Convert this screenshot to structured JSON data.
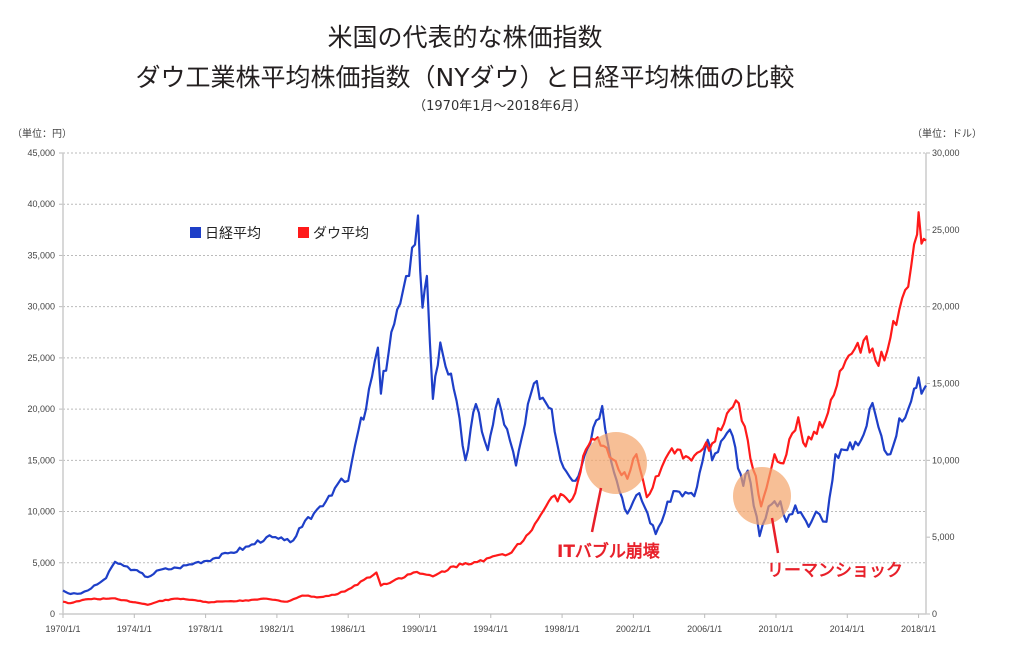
{
  "title_line1": "米国の代表的な株価指数",
  "title_line2": "ダウ工業株平均株価指数（NYダウ）と日経平均株価の比較",
  "subtitle": "（1970年1月～2018年6月）",
  "chart_data": {
    "type": "line",
    "title": "米国の代表的な株価指数 ダウ工業株平均株価指数（NYダウ）と日経平均株価の比較",
    "subtitle": "（1970年1月～2018年6月）",
    "left_axis": {
      "unit_label": "（単位：円）",
      "range": [
        0,
        45000
      ],
      "ticks": [
        "0",
        "5,000",
        "10,000",
        "15,000",
        "20,000",
        "25,000",
        "30,000",
        "35,000",
        "40,000",
        "45,000"
      ]
    },
    "right_axis": {
      "unit_label": "（単位：ドル）",
      "range": [
        0,
        30000
      ],
      "ticks": [
        "0",
        "5,000",
        "10,000",
        "15,000",
        "20,000",
        "25,000",
        "30,000"
      ]
    },
    "x_axis": {
      "range": [
        "1970-01",
        "2018-06"
      ],
      "ticks": [
        "1970/1/1",
        "1974/1/1",
        "1978/1/1",
        "1982/1/1",
        "1986/1/1",
        "1990/1/1",
        "1994/1/1",
        "1998/1/1",
        "2002/1/1",
        "2006/1/1",
        "2010/1/1",
        "2014/1/1",
        "2018/1/1"
      ]
    },
    "grid": true,
    "legend_position": "top-left",
    "series": [
      {
        "name": "日経平均",
        "axis": "left",
        "color": "#1e3fc8",
        "points": [
          [
            "1970-01",
            2300
          ],
          [
            "1970-06",
            1950
          ],
          [
            "1971-01",
            2000
          ],
          [
            "1971-08",
            2500
          ],
          [
            "1972-06",
            3500
          ],
          [
            "1972-12",
            5100
          ],
          [
            "1973-06",
            4700
          ],
          [
            "1974-01",
            4300
          ],
          [
            "1974-10",
            3600
          ],
          [
            "1975-06",
            4300
          ],
          [
            "1976-06",
            4500
          ],
          [
            "1977-06",
            5000
          ],
          [
            "1978-06",
            5400
          ],
          [
            "1979-06",
            6000
          ],
          [
            "1980-06",
            6600
          ],
          [
            "1981-06",
            7500
          ],
          [
            "1982-06",
            7200
          ],
          [
            "1982-10",
            7000
          ],
          [
            "1983-06",
            8500
          ],
          [
            "1984-06",
            10500
          ],
          [
            "1985-06",
            12700
          ],
          [
            "1986-01",
            13000
          ],
          [
            "1986-08",
            18000
          ],
          [
            "1987-01",
            20000
          ],
          [
            "1987-09",
            26000
          ],
          [
            "1987-11",
            21500
          ],
          [
            "1988-06",
            27500
          ],
          [
            "1989-06",
            33000
          ],
          [
            "1989-12",
            38900
          ],
          [
            "1990-03",
            29900
          ],
          [
            "1990-06",
            33000
          ],
          [
            "1990-10",
            21000
          ],
          [
            "1991-03",
            26500
          ],
          [
            "1991-12",
            22000
          ],
          [
            "1992-08",
            15000
          ],
          [
            "1993-03",
            20500
          ],
          [
            "1993-11",
            16000
          ],
          [
            "1994-06",
            21000
          ],
          [
            "1995-06",
            14500
          ],
          [
            "1996-06",
            22500
          ],
          [
            "1997-06",
            20000
          ],
          [
            "1997-12",
            15000
          ],
          [
            "1998-10",
            13000
          ],
          [
            "1999-12",
            18900
          ],
          [
            "2000-04",
            20300
          ],
          [
            "2000-12",
            13800
          ],
          [
            "2001-09",
            9800
          ],
          [
            "2002-05",
            11800
          ],
          [
            "2003-04",
            7800
          ],
          [
            "2004-04",
            12000
          ],
          [
            "2005-06",
            11500
          ],
          [
            "2006-03",
            17000
          ],
          [
            "2006-06",
            15000
          ],
          [
            "2007-06",
            18000
          ],
          [
            "2008-03",
            12500
          ],
          [
            "2008-06",
            14000
          ],
          [
            "2009-02",
            7600
          ],
          [
            "2009-08",
            10500
          ],
          [
            "2010-04",
            11000
          ],
          [
            "2010-08",
            9000
          ],
          [
            "2011-02",
            10600
          ],
          [
            "2011-11",
            8500
          ],
          [
            "2012-04",
            10000
          ],
          [
            "2012-11",
            9000
          ],
          [
            "2013-05",
            15600
          ],
          [
            "2014-01",
            16000
          ],
          [
            "2014-12",
            17500
          ],
          [
            "2015-06",
            20600
          ],
          [
            "2016-02",
            16000
          ],
          [
            "2016-06",
            15600
          ],
          [
            "2016-12",
            19100
          ],
          [
            "2017-06",
            20000
          ],
          [
            "2017-10",
            22000
          ],
          [
            "2018-01",
            23100
          ],
          [
            "2018-03",
            21500
          ],
          [
            "2018-06",
            22300
          ]
        ]
      },
      {
        "name": "ダウ平均",
        "axis": "right",
        "color": "#ff1a1a",
        "points": [
          [
            "1970-01",
            800
          ],
          [
            "1970-06",
            700
          ],
          [
            "1971-04",
            950
          ],
          [
            "1972-12",
            1020
          ],
          [
            "1973-06",
            900
          ],
          [
            "1974-10",
            600
          ],
          [
            "1975-06",
            850
          ],
          [
            "1976-06",
            1000
          ],
          [
            "1977-06",
            900
          ],
          [
            "1978-03",
            750
          ],
          [
            "1979-06",
            840
          ],
          [
            "1980-06",
            870
          ],
          [
            "1981-04",
            1000
          ],
          [
            "1982-08",
            800
          ],
          [
            "1983-06",
            1200
          ],
          [
            "1984-06",
            1100
          ],
          [
            "1985-06",
            1300
          ],
          [
            "1986-01",
            1600
          ],
          [
            "1987-08",
            2700
          ],
          [
            "1987-11",
            1850
          ],
          [
            "1989-09",
            2700
          ],
          [
            "1990-10",
            2450
          ],
          [
            "1991-12",
            3100
          ],
          [
            "1993-06",
            3500
          ],
          [
            "1995-01",
            3900
          ],
          [
            "1996-01",
            5100
          ],
          [
            "1997-06",
            7600
          ],
          [
            "1998-08",
            7500
          ],
          [
            "1999-05",
            10700
          ],
          [
            "2000-01",
            11500
          ],
          [
            "2001-09",
            8800
          ],
          [
            "2002-03",
            10400
          ],
          [
            "2002-10",
            7600
          ],
          [
            "2003-06",
            9000
          ],
          [
            "2004-01",
            10500
          ],
          [
            "2005-06",
            10300
          ],
          [
            "2006-06",
            11100
          ],
          [
            "2007-10",
            13900
          ],
          [
            "2008-06",
            11300
          ],
          [
            "2009-03",
            7000
          ],
          [
            "2009-12",
            10400
          ],
          [
            "2010-06",
            9800
          ],
          [
            "2011-04",
            12800
          ],
          [
            "2011-09",
            10900
          ],
          [
            "2012-12",
            13100
          ],
          [
            "2013-12",
            16500
          ],
          [
            "2014-12",
            17800
          ],
          [
            "2015-08",
            16500
          ],
          [
            "2016-02",
            16500
          ],
          [
            "2016-12",
            19800
          ],
          [
            "2017-06",
            21300
          ],
          [
            "2017-12",
            24700
          ],
          [
            "2018-01",
            26150
          ],
          [
            "2018-03",
            24100
          ],
          [
            "2018-06",
            24300
          ]
        ]
      }
    ],
    "annotations": [
      {
        "label": "ITバブル崩壊",
        "date": "2000-10",
        "color": "#e8202a"
      },
      {
        "label": "リーマンショック",
        "date": "2009-01",
        "color": "#e8202a"
      }
    ]
  }
}
